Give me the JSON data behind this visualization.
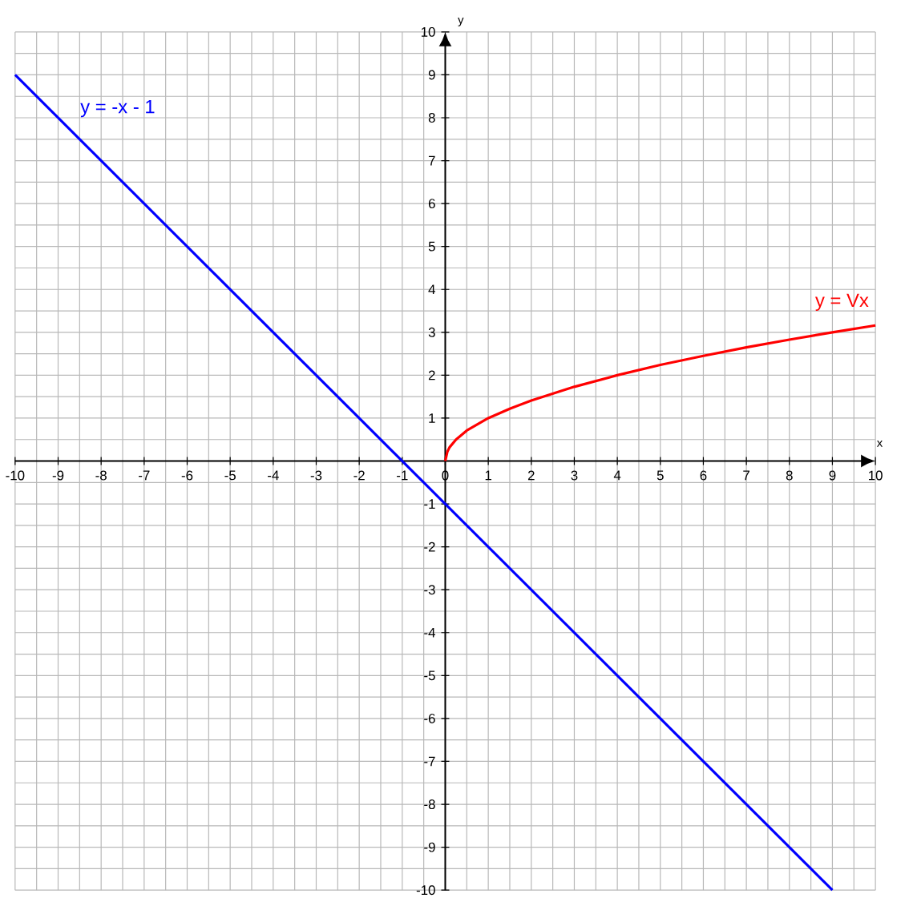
{
  "chart_data": {
    "type": "line",
    "xlabel": "x",
    "ylabel": "y",
    "xlim": [
      -10,
      10
    ],
    "ylim": [
      -10,
      10
    ],
    "xticks": [
      -10,
      -9,
      -8,
      -7,
      -6,
      -5,
      -4,
      -3,
      -2,
      -1,
      0,
      1,
      2,
      3,
      4,
      5,
      6,
      7,
      8,
      9,
      10
    ],
    "yticks": [
      -10,
      -9,
      -8,
      -7,
      -6,
      -5,
      -4,
      -3,
      -2,
      -1,
      {
        "value": 0,
        "label": null
      },
      1,
      2,
      3,
      4,
      5,
      6,
      7,
      8,
      9,
      10
    ],
    "grid": true,
    "marker": "none",
    "line_style": "solid",
    "series": [
      {
        "name": "y = -x - 1",
        "color": "#0000ff",
        "x": [
          -10,
          9
        ],
        "values": [
          9,
          -10
        ]
      },
      {
        "name": "y = Vx",
        "color": "#ff0000",
        "x": [
          0,
          0.05,
          0.1,
          0.25,
          0.5,
          1,
          1.5,
          2,
          3,
          4,
          5,
          6,
          7,
          8,
          9,
          10
        ],
        "values": [
          0,
          0.22,
          0.32,
          0.5,
          0.71,
          1,
          1.22,
          1.41,
          1.73,
          2,
          2.24,
          2.45,
          2.65,
          2.83,
          3,
          3.16
        ]
      }
    ]
  }
}
